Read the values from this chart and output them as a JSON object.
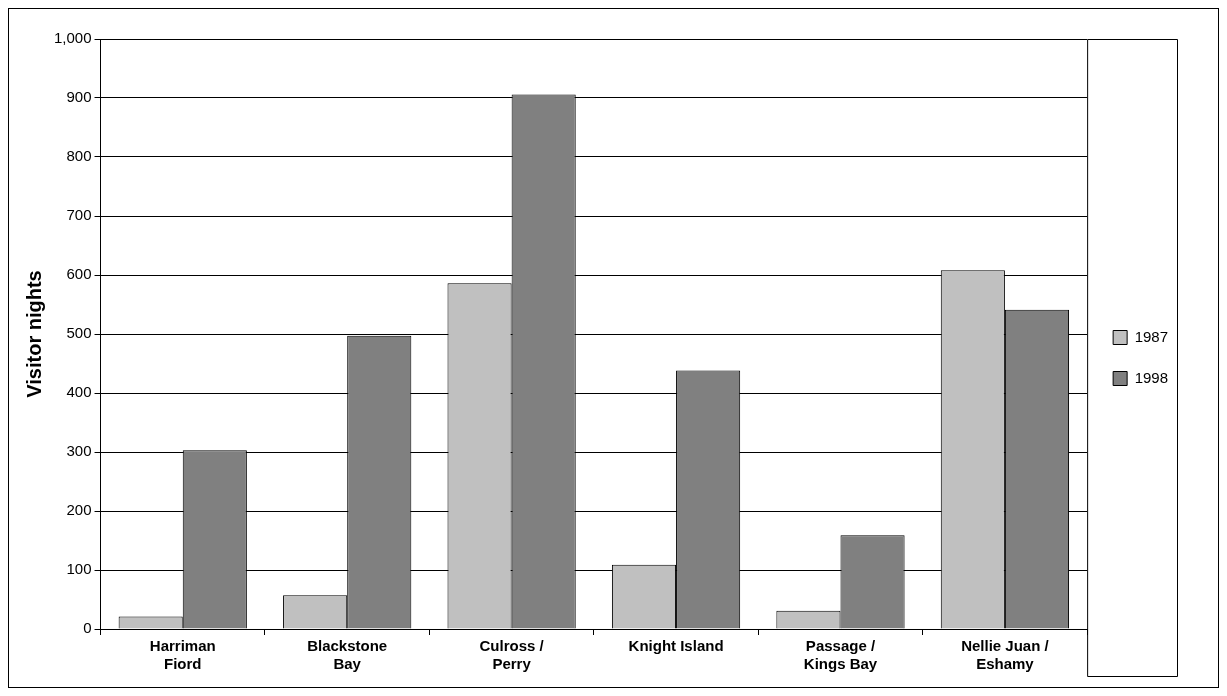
{
  "chart_data": {
    "type": "bar",
    "ylabel": "Visitor nights",
    "categories": [
      "Harriman\nFiord",
      "Blackstone\nBay",
      "Culross /\nPerry",
      "Knight Island",
      "Passage /\nKings Bay",
      "Nellie Juan /\nEshamy"
    ],
    "series": [
      {
        "name": "1987",
        "color": "#c0c0c0",
        "values": [
          21,
          57,
          586,
          109,
          31,
          608
        ]
      },
      {
        "name": "1998",
        "color": "#808080",
        "values": [
          303,
          497,
          906,
          438,
          159,
          541
        ]
      }
    ],
    "ylim": [
      0,
      1000
    ],
    "yticks": [
      0,
      {
        "value": 100,
        "label": "100"
      },
      200,
      300,
      400,
      500,
      600,
      700,
      800,
      900,
      {
        "value": 1000,
        "label": "1,000"
      }
    ],
    "grid": "y",
    "legend": "right"
  }
}
